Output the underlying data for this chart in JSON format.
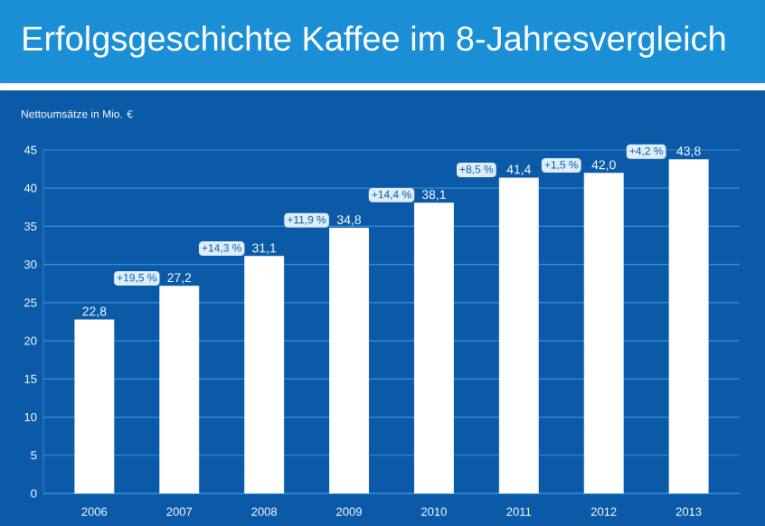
{
  "chart_data": {
    "type": "bar",
    "title": "Erfolgsgeschichte Kaffee im 8-Jahresvergleich",
    "ylabel": "Nettoumsätze in Mio. €",
    "categories": [
      "2006",
      "2007",
      "2008",
      "2009",
      "2010",
      "2011",
      "2012",
      "2013"
    ],
    "values": [
      22.8,
      27.2,
      31.1,
      34.8,
      38.1,
      41.4,
      42.0,
      43.8
    ],
    "value_labels": [
      "22,8",
      "27,2",
      "31,1",
      "34,8",
      "38,1",
      "41,4",
      "42,0",
      "43,8"
    ],
    "color": "#ffffff",
    "ylim": [
      0,
      45
    ],
    "yticks": [
      0,
      5,
      10,
      15,
      20,
      25,
      30,
      35,
      40,
      45
    ],
    "grid": "y",
    "annotations": [
      "+19,5 %",
      "+14,3 %",
      "+11,9 %",
      "+14,4 %",
      "+8,5 %",
      "+1,5 %",
      "+4,2 %"
    ]
  }
}
